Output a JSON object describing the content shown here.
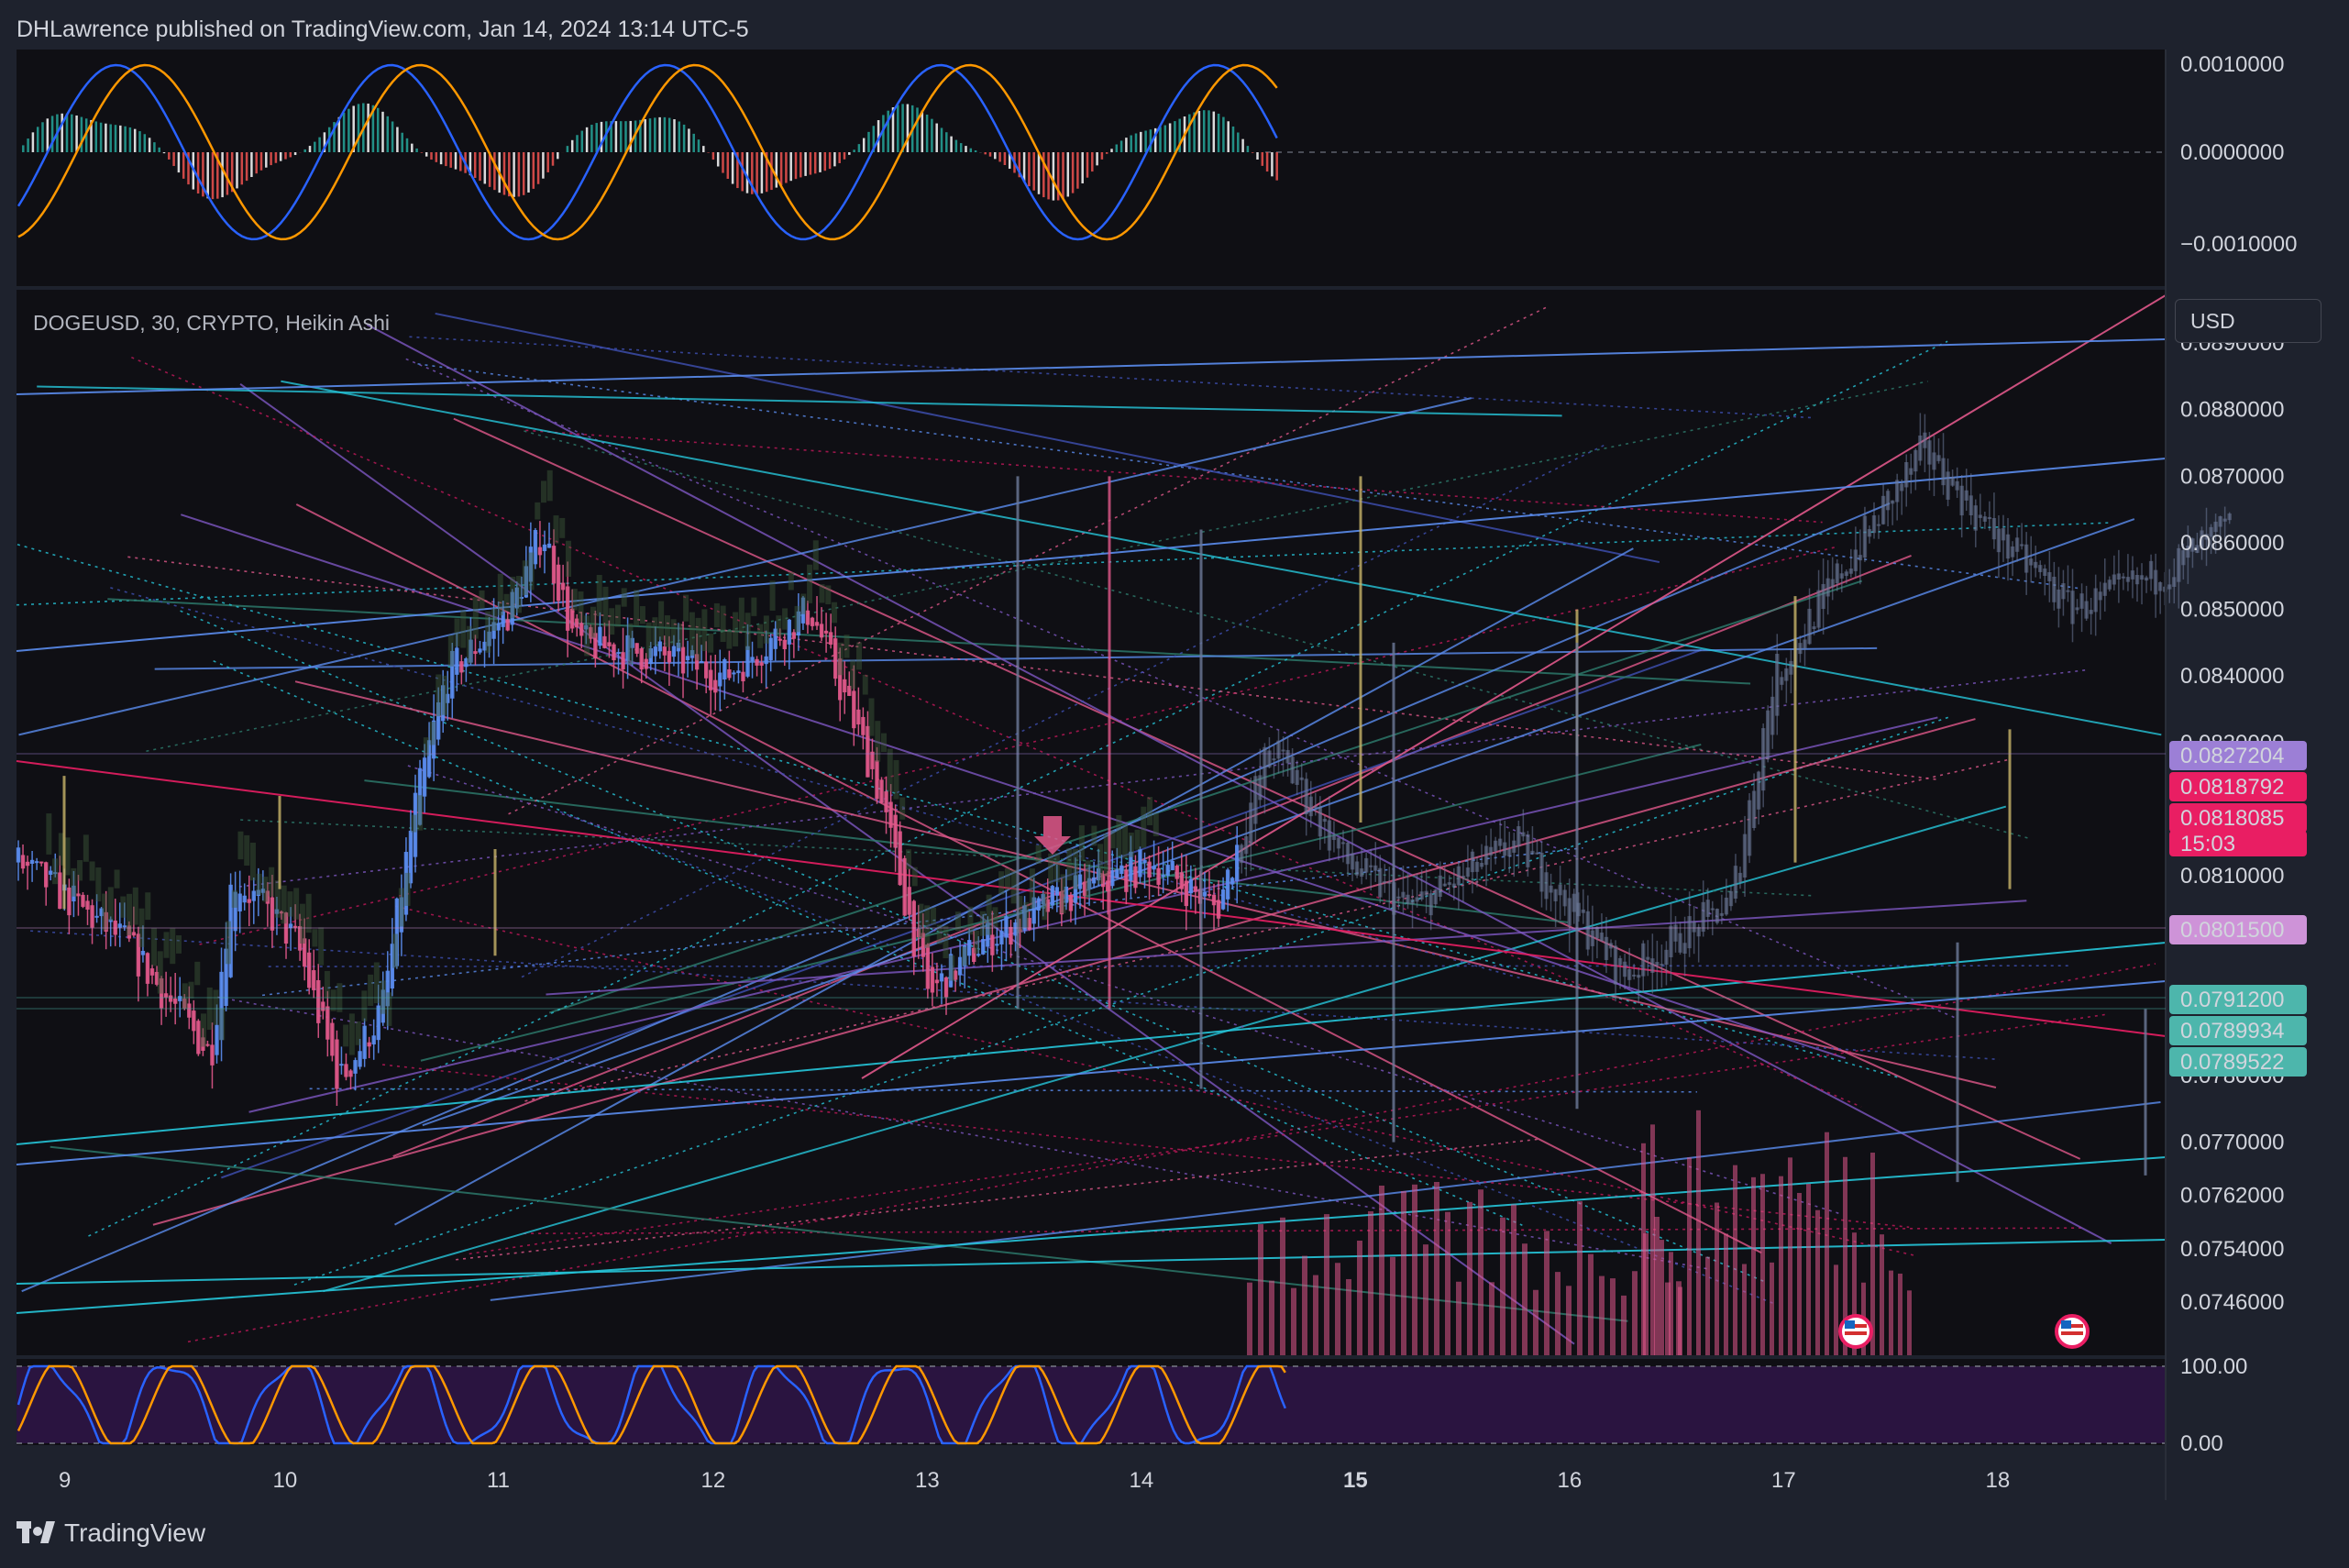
{
  "header": {
    "publish_line": "DHLawrence published on TradingView.com, Jan 14, 2024 13:14 UTC-5"
  },
  "symbol_line": "DOGEUSD, 30, CRYPTO, Heikin Ashi",
  "currency_button": "USD",
  "footer": {
    "brand": "TradingView"
  },
  "colors": {
    "background": "#0f0f14",
    "panel": "#1e222d",
    "up": "#5b8def",
    "down": "#e0588a",
    "teal": "#26c6da",
    "purple": "#7e57c2",
    "rsi_band": "#2a1440"
  },
  "chart_data": [
    {
      "type": "line",
      "panel": "MACD",
      "y_ticks": [
        "0.0010000",
        "0.0000000",
        "−0.0010000"
      ],
      "ylim": [
        -0.0013,
        0.0011
      ]
    },
    {
      "type": "candlestick",
      "panel": "price",
      "y_ticks": [
        "0.0890000",
        "0.0880000",
        "0.0870000",
        "0.0860000",
        "0.0850000",
        "0.0840000",
        "0.0830000",
        "0.0810000",
        "0.0780000",
        "0.0770000",
        "0.0762000",
        "0.0754000",
        "0.0746000"
      ],
      "ylim": [
        0.0738,
        0.0898
      ],
      "x_ticks": [
        "9",
        "10",
        "11",
        "12",
        "13",
        "14",
        "15",
        "16",
        "17",
        "18"
      ],
      "price_tags": [
        {
          "label": "0.0827204",
          "color": "#9c7fd6",
          "value": 0.0827204
        },
        {
          "label": "0.0818792",
          "color": "#e91e63",
          "value": 0.0818792
        },
        {
          "label": "0.0818085",
          "color": "#e91e63",
          "value": 0.0818085
        },
        {
          "label": "15:03",
          "color": "#e91e63"
        },
        {
          "label": "0.0801500",
          "color": "#ce93d8",
          "value": 0.08015
        },
        {
          "label": "0.0791200",
          "color": "#4db6ac",
          "value": 0.07912
        },
        {
          "label": "0.0789934",
          "color": "#4db6ac",
          "value": 0.0789934
        },
        {
          "label": "0.0789522",
          "color": "#4db6ac",
          "value": 0.0789522
        }
      ]
    },
    {
      "type": "line",
      "panel": "Stochastic RSI",
      "y_ticks": [
        "100.00",
        "0.00"
      ],
      "ylim": [
        0,
        100
      ]
    }
  ]
}
